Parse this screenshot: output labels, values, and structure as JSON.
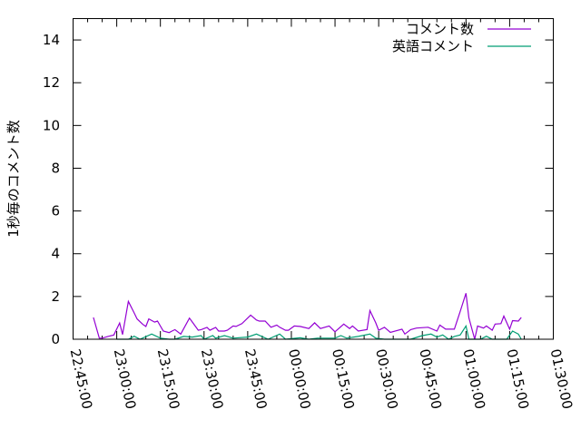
{
  "chart_data": {
    "type": "line",
    "title": "",
    "xlabel": "",
    "ylabel": "1秒毎のコメント数",
    "xlim": [
      "22:45:00",
      "01:30:00"
    ],
    "ylim": [
      0,
      15
    ],
    "x_ticks": [
      "22:45:00",
      "23:00:00",
      "23:15:00",
      "23:30:00",
      "23:45:00",
      "00:00:00",
      "00:15:00",
      "00:30:00",
      "00:45:00",
      "01:00:00",
      "01:15:00",
      "01:30:00"
    ],
    "y_ticks": [
      "0",
      "2",
      "4",
      "6",
      "8",
      "10",
      "12",
      "14"
    ],
    "grid": false,
    "legend_position": "top-right",
    "series": [
      {
        "name": "コメント数",
        "color": "#9400d3",
        "points": [
          [
            "22:52:00",
            1.02
          ],
          [
            "22:54:00",
            0.05
          ],
          [
            "22:55:00",
            0.05
          ],
          [
            "22:57:00",
            0.13
          ],
          [
            "22:59:00",
            0.2
          ],
          [
            "23:01:00",
            0.76
          ],
          [
            "23:02:00",
            0.22
          ],
          [
            "23:04:00",
            1.77
          ],
          [
            "23:06:00",
            1.23
          ],
          [
            "23:07:00",
            0.95
          ],
          [
            "23:09:00",
            0.69
          ],
          [
            "23:10:00",
            0.6
          ],
          [
            "23:11:00",
            0.95
          ],
          [
            "23:13:00",
            0.8
          ],
          [
            "23:14:00",
            0.85
          ],
          [
            "23:16:00",
            0.38
          ],
          [
            "23:18:00",
            0.31
          ],
          [
            "23:19:00",
            0.38
          ],
          [
            "23:20:00",
            0.45
          ],
          [
            "23:22:00",
            0.24
          ],
          [
            "23:25:00",
            0.99
          ],
          [
            "23:26:00",
            0.8
          ],
          [
            "23:28:00",
            0.42
          ],
          [
            "23:29:00",
            0.45
          ],
          [
            "23:31:00",
            0.55
          ],
          [
            "23:32:00",
            0.42
          ],
          [
            "23:34:00",
            0.55
          ],
          [
            "23:35:00",
            0.38
          ],
          [
            "23:37:00",
            0.38
          ],
          [
            "23:38:00",
            0.42
          ],
          [
            "23:40:00",
            0.62
          ],
          [
            "23:41:00",
            0.6
          ],
          [
            "23:43:00",
            0.73
          ],
          [
            "23:46:00",
            1.13
          ],
          [
            "23:48:00",
            0.9
          ],
          [
            "23:49:00",
            0.85
          ],
          [
            "23:51:00",
            0.85
          ],
          [
            "23:53:00",
            0.56
          ],
          [
            "23:55:00",
            0.66
          ],
          [
            "23:56:00",
            0.56
          ],
          [
            "23:58:00",
            0.42
          ],
          [
            "23:59:00",
            0.42
          ],
          [
            "00:01:00",
            0.62
          ],
          [
            "00:03:00",
            0.6
          ],
          [
            "00:06:00",
            0.5
          ],
          [
            "00:08:00",
            0.77
          ],
          [
            "00:10:00",
            0.5
          ],
          [
            "00:13:00",
            0.62
          ],
          [
            "00:15:00",
            0.35
          ],
          [
            "00:18:00",
            0.71
          ],
          [
            "00:20:00",
            0.5
          ],
          [
            "00:21:00",
            0.62
          ],
          [
            "00:23:00",
            0.38
          ],
          [
            "00:26:00",
            0.45
          ],
          [
            "00:27:00",
            1.34
          ],
          [
            "00:29:00",
            0.77
          ],
          [
            "00:30:00",
            0.42
          ],
          [
            "00:32:00",
            0.56
          ],
          [
            "00:34:00",
            0.32
          ],
          [
            "00:38:00",
            0.47
          ],
          [
            "00:39:00",
            0.24
          ],
          [
            "00:41:00",
            0.45
          ],
          [
            "00:43:00",
            0.52
          ],
          [
            "00:47:00",
            0.56
          ],
          [
            "00:50:00",
            0.38
          ],
          [
            "00:51:00",
            0.66
          ],
          [
            "00:53:00",
            0.47
          ],
          [
            "00:56:00",
            0.47
          ],
          [
            "00:58:00",
            1.3
          ],
          [
            "01:00:00",
            2.15
          ],
          [
            "01:01:00",
            1.0
          ],
          [
            "01:03:00",
            0.0
          ],
          [
            "01:04:00",
            0.62
          ],
          [
            "01:06:00",
            0.52
          ],
          [
            "01:07:00",
            0.62
          ],
          [
            "01:09:00",
            0.42
          ],
          [
            "01:10:00",
            0.71
          ],
          [
            "01:12:00",
            0.73
          ],
          [
            "01:13:00",
            1.08
          ],
          [
            "01:15:00",
            0.47
          ],
          [
            "01:16:00",
            0.87
          ],
          [
            "01:18:00",
            0.85
          ],
          [
            "01:19:00",
            1.02
          ]
        ]
      },
      {
        "name": "英語コメント",
        "color": "#009e73",
        "points": [
          [
            "23:00:00",
            0
          ],
          [
            "23:04:00",
            0
          ],
          [
            "23:06:00",
            0.14
          ],
          [
            "23:08:00",
            0
          ],
          [
            "23:12:00",
            0.24
          ],
          [
            "23:15:00",
            0.05
          ],
          [
            "23:18:00",
            0
          ],
          [
            "23:20:00",
            0
          ],
          [
            "23:23:00",
            0.13
          ],
          [
            "23:26:00",
            0.1
          ],
          [
            "23:29:00",
            0.17
          ],
          [
            "23:30:00",
            0
          ],
          [
            "23:33:00",
            0.17
          ],
          [
            "23:34:00",
            0.05
          ],
          [
            "23:37:00",
            0.17
          ],
          [
            "23:40:00",
            0.05
          ],
          [
            "23:45:00",
            0.1
          ],
          [
            "23:48:00",
            0.24
          ],
          [
            "23:52:00",
            0
          ],
          [
            "23:56:00",
            0.24
          ],
          [
            "23:58:00",
            0
          ],
          [
            "00:03:00",
            0.07
          ],
          [
            "00:06:00",
            0
          ],
          [
            "00:09:00",
            0.05
          ],
          [
            "00:15:00",
            0.05
          ],
          [
            "00:17:00",
            0.17
          ],
          [
            "00:19:00",
            0.05
          ],
          [
            "00:23:00",
            0.13
          ],
          [
            "00:27:00",
            0.24
          ],
          [
            "00:29:00",
            0.05
          ],
          [
            "00:32:00",
            0
          ],
          [
            "00:41:00",
            0
          ],
          [
            "00:45:00",
            0.17
          ],
          [
            "00:48:00",
            0.24
          ],
          [
            "00:50:00",
            0.1
          ],
          [
            "00:52:00",
            0.2
          ],
          [
            "00:54:00",
            0
          ],
          [
            "00:56:00",
            0.13
          ],
          [
            "00:58:00",
            0.2
          ],
          [
            "01:00:00",
            0.62
          ],
          [
            "01:01:00",
            0
          ],
          [
            "01:05:00",
            0
          ],
          [
            "01:07:00",
            0.14
          ],
          [
            "01:09:00",
            0
          ],
          [
            "01:14:00",
            0
          ],
          [
            "01:16:00",
            0.38
          ],
          [
            "01:18:00",
            0.24
          ],
          [
            "01:19:00",
            0
          ]
        ]
      }
    ]
  }
}
